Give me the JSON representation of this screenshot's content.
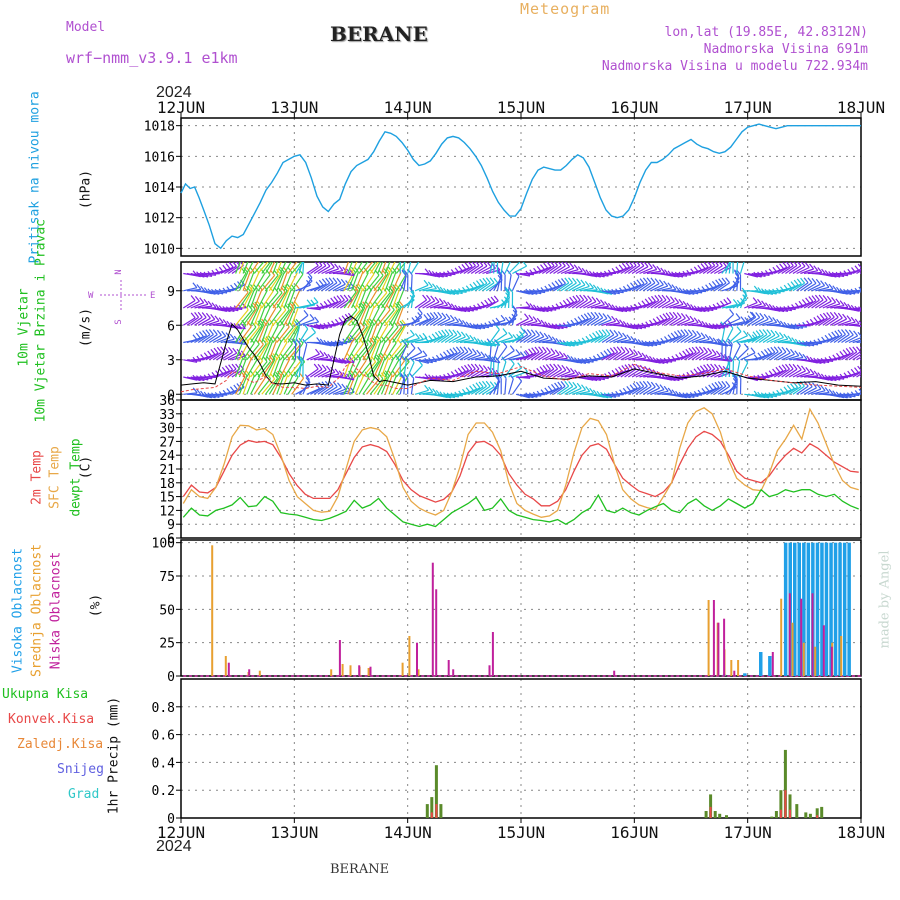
{
  "header": {
    "model_label": "Model",
    "model_name": "wrf−nmm_v3.9.1  e1km",
    "station_title": "BERANE",
    "meteogram_label": "Meteogram",
    "lonlat": "lon,lat (19.85E, 42.8312N)",
    "elevation": "Nadmorska Visina 691m",
    "model_elevation": "Nadmorska Visina u modelu 722.934m",
    "top_year": "2024",
    "bottom_year": "2024",
    "footer_station": "BERANE",
    "watermark": "made by Angel"
  },
  "colors": {
    "pressure": "#1ea0e0",
    "temp2m": "#e84848",
    "sfc_temp": "#e8a848",
    "dewpt": "#20c020",
    "cloud_high": "#20a0e8",
    "cloud_mid": "#e8a030",
    "cloud_low": "#c0209c",
    "rain_total": "#20c020",
    "rain_conv": "#e84848",
    "rain_strat": "#e88838",
    "snow": "#6060e0",
    "graupel": "#30c8c8",
    "wind_violet": "#8020e0",
    "wind_blue": "#4060e8",
    "wind_cyan": "#20c0d8",
    "wind_green": "#40d040",
    "wind_yellow": "#e8d020",
    "wind_orange": "#e89028",
    "label_purple": "#b050d0",
    "label_orange": "#e8b060"
  },
  "chart_data": [
    {
      "type": "line",
      "id": "pressure",
      "ylabel": "Pritisak na nivou mora",
      "unit": "(hPa)",
      "ylim": [
        1009.5,
        1018.5
      ],
      "yticks": [
        1010,
        1012,
        1014,
        1016,
        1018
      ],
      "xlabels": [
        "12JUN",
        "13JUN",
        "14JUN",
        "15JUN",
        "16JUN",
        "17JUN",
        "18JUN"
      ],
      "grid": true,
      "x_days": [
        0,
        0.04,
        0.08,
        0.12,
        0.16,
        0.2,
        0.25,
        0.3,
        0.35,
        0.4,
        0.45,
        0.5,
        0.55,
        0.6,
        0.65,
        0.7,
        0.75,
        0.8,
        0.85,
        0.9,
        0.95,
        1.0,
        1.05,
        1.1,
        1.15,
        1.2,
        1.25,
        1.3,
        1.35,
        1.4,
        1.45,
        1.5,
        1.55,
        1.6,
        1.65,
        1.7,
        1.75,
        1.8,
        1.85,
        1.9,
        1.95,
        2.0,
        2.05,
        2.1,
        2.15,
        2.2,
        2.25,
        2.3,
        2.35,
        2.4,
        2.45,
        2.5,
        2.55,
        2.6,
        2.65,
        2.7,
        2.75,
        2.8,
        2.85,
        2.9,
        2.95,
        3.0,
        3.05,
        3.1,
        3.15,
        3.2,
        3.25,
        3.3,
        3.35,
        3.4,
        3.45,
        3.5,
        3.55,
        3.6,
        3.65,
        3.7,
        3.75,
        3.8,
        3.85,
        3.9,
        3.95,
        4.0,
        4.05,
        4.1,
        4.15,
        4.2,
        4.25,
        4.3,
        4.35,
        4.4,
        4.45,
        4.5,
        4.55,
        4.6,
        4.65,
        4.7,
        4.75,
        4.8,
        4.85,
        4.9,
        4.95,
        5.0,
        5.05,
        5.1,
        5.15,
        5.2,
        5.25,
        5.3,
        5.35,
        5.4,
        5.45,
        5.5,
        5.55,
        5.6,
        5.65,
        5.7,
        5.75,
        5.8,
        5.85,
        5.9,
        5.95,
        6.0
      ],
      "values": [
        1013.6,
        1014.2,
        1013.9,
        1014.0,
        1013.3,
        1012.5,
        1011.5,
        1010.3,
        1010.0,
        1010.5,
        1010.8,
        1010.7,
        1010.9,
        1011.6,
        1012.3,
        1013.0,
        1013.8,
        1014.3,
        1014.9,
        1015.6,
        1015.8,
        1016.0,
        1016.1,
        1015.6,
        1014.6,
        1013.4,
        1012.7,
        1012.4,
        1012.9,
        1013.2,
        1014.2,
        1015.0,
        1015.4,
        1015.6,
        1015.8,
        1016.3,
        1017.0,
        1017.6,
        1017.5,
        1017.3,
        1016.9,
        1016.4,
        1015.8,
        1015.4,
        1015.5,
        1015.7,
        1016.2,
        1016.8,
        1017.2,
        1017.3,
        1017.2,
        1016.9,
        1016.5,
        1016.0,
        1015.4,
        1014.6,
        1013.7,
        1013.0,
        1012.5,
        1012.1,
        1012.1,
        1012.6,
        1013.6,
        1014.5,
        1015.1,
        1015.3,
        1015.2,
        1015.1,
        1015.1,
        1015.4,
        1015.8,
        1016.1,
        1015.9,
        1015.3,
        1014.3,
        1013.3,
        1012.5,
        1012.1,
        1012.0,
        1012.1,
        1012.5,
        1013.3,
        1014.3,
        1015.1,
        1015.6,
        1015.6,
        1015.8,
        1016.1,
        1016.5,
        1016.7,
        1016.9,
        1017.1,
        1016.8,
        1016.6,
        1016.5,
        1016.3,
        1016.2,
        1016.3,
        1016.6,
        1017.1,
        1017.6,
        1017.9,
        1018.0,
        1018.1,
        1018.0,
        1017.9,
        1017.8,
        1017.9,
        1018.0,
        1018.0,
        1018.0,
        1018.0,
        1018.0,
        1018.0,
        1018.0,
        1018.0,
        1018.0,
        1018.0,
        1018.0,
        1018.0,
        1018.0,
        1018.0
      ]
    },
    {
      "type": "line",
      "id": "wind",
      "ylabel": "10m Vjetar Brzina i Pravac",
      "unit": "(m/s)",
      "ylim": [
        -0.5,
        11.5
      ],
      "yticks": [
        0,
        3,
        6,
        9
      ],
      "compass": {
        "n": "N",
        "e": "E",
        "w": "W",
        "s": "S"
      },
      "x_days": [
        0,
        0.1,
        0.2,
        0.3,
        0.4,
        0.45,
        0.5,
        0.55,
        0.6,
        0.65,
        0.7,
        0.75,
        0.8,
        0.85,
        0.9,
        1.0,
        1.1,
        1.2,
        1.3,
        1.4,
        1.45,
        1.5,
        1.55,
        1.6,
        1.65,
        1.7,
        1.75,
        1.8,
        1.9,
        2.0,
        2.2,
        2.4,
        2.6,
        2.8,
        3.0,
        3.2,
        3.4,
        3.6,
        3.8,
        4.0,
        4.2,
        4.4,
        4.6,
        4.8,
        5.0,
        5.2,
        5.4,
        5.6,
        5.8,
        6.0
      ],
      "speed": [
        0.8,
        0.9,
        1.0,
        0.9,
        4.5,
        6.1,
        5.6,
        4.8,
        4.0,
        3.4,
        2.6,
        1.6,
        1.0,
        0.9,
        0.9,
        1.0,
        0.8,
        0.9,
        0.8,
        5.2,
        6.5,
        6.8,
        6.4,
        5.2,
        3.6,
        1.6,
        1.1,
        1.2,
        1.0,
        0.8,
        1.2,
        1.1,
        1.5,
        1.6,
        2.0,
        1.4,
        1.3,
        1.6,
        1.5,
        2.2,
        1.8,
        1.4,
        1.6,
        2.0,
        1.4,
        1.2,
        1.0,
        1.1,
        0.8,
        0.7
      ],
      "gust": [
        0.2,
        0.4,
        0.5,
        0.6,
        1.2,
        2.0,
        1.8,
        1.6,
        1.2,
        1.0,
        1.3,
        1.5,
        1.0,
        0.8,
        0.6,
        0.6,
        0.5,
        0.7,
        0.6,
        1.5,
        2.4,
        2.8,
        2.2,
        1.8,
        1.4,
        1.0,
        0.8,
        0.8,
        0.5,
        0.5,
        1.4,
        1.2,
        2.0,
        1.8,
        2.4,
        1.6,
        1.2,
        1.8,
        1.6,
        2.6,
        1.9,
        1.6,
        1.8,
        2.2,
        1.6,
        1.2,
        1.0,
        0.8,
        0.7,
        0.6
      ]
    },
    {
      "type": "line",
      "id": "temperature",
      "ylabel_lines": [
        "2m Temp",
        "SFC Temp",
        "dewpt Temp"
      ],
      "unit": "(C)",
      "ylim": [
        6,
        36
      ],
      "yticks": [
        6,
        9,
        12,
        15,
        18,
        21,
        24,
        27,
        30,
        33,
        36
      ],
      "series": [
        {
          "name": "2m Temp",
          "values": [
            15.0,
            17.5,
            16.0,
            15.8,
            17.0,
            20.5,
            24.0,
            26.2,
            27.2,
            26.8,
            27.0,
            26.3,
            23.5,
            20.0,
            17.4,
            15.5,
            14.6,
            14.6,
            14.6,
            16.5,
            20.0,
            23.5,
            25.8,
            26.3,
            25.8,
            24.8,
            22.0,
            18.5,
            16.5,
            15.2,
            14.5,
            13.8,
            14.4,
            16.0,
            19.5,
            24.5,
            26.8,
            27.0,
            26.0,
            24.0,
            20.0,
            17.5,
            15.5,
            14.5,
            13.0,
            13.0,
            14.0,
            16.5,
            20.5,
            24.0,
            26.0,
            26.5,
            25.3,
            22.0,
            19.0,
            17.5,
            16.2,
            15.6,
            15.0,
            16.0,
            18.0,
            22.0,
            25.5,
            28.0,
            29.2,
            28.5,
            27.0,
            24.0,
            20.5,
            19.0,
            18.5,
            18.0,
            19.5,
            22.0,
            24.0,
            25.5,
            24.5,
            26.5,
            25.5,
            24.0,
            22.5,
            21.5,
            20.5,
            20.3
          ]
        },
        {
          "name": "SFC Temp",
          "values": [
            13.5,
            16.5,
            15.0,
            14.6,
            17.0,
            22.0,
            28.0,
            30.5,
            30.4,
            29.5,
            29.8,
            28.5,
            24.0,
            18.5,
            15.0,
            13.5,
            12.0,
            11.6,
            11.8,
            15.0,
            21.0,
            27.0,
            29.5,
            30.0,
            29.6,
            28.0,
            23.0,
            17.0,
            14.0,
            12.5,
            11.6,
            11.0,
            12.0,
            16.0,
            21.5,
            28.5,
            31.0,
            31.0,
            29.0,
            25.0,
            18.0,
            13.5,
            12.0,
            11.2,
            10.5,
            10.8,
            12.0,
            17.5,
            24.5,
            30.0,
            32.0,
            31.5,
            28.5,
            22.0,
            16.5,
            14.5,
            13.2,
            12.6,
            12.2,
            15.0,
            18.0,
            25.5,
            31.0,
            33.5,
            34.3,
            33.0,
            29.0,
            23.0,
            19.0,
            17.5,
            16.5,
            16.3,
            20.0,
            25.0,
            27.5,
            30.5,
            27.5,
            34.0,
            31.0,
            26.5,
            22.0,
            18.5,
            17.0,
            16.5
          ]
        },
        {
          "name": "dewpt Temp",
          "values": [
            10.5,
            12.5,
            11.0,
            10.8,
            12.0,
            12.5,
            13.2,
            14.8,
            12.8,
            13.0,
            15.0,
            14.0,
            11.5,
            11.2,
            11.0,
            10.5,
            10.0,
            9.8,
            10.3,
            11.0,
            11.8,
            14.2,
            12.5,
            13.2,
            14.6,
            12.5,
            11.0,
            9.5,
            9.0,
            8.5,
            9.0,
            8.5,
            10.0,
            11.5,
            12.5,
            13.5,
            14.8,
            12.0,
            12.5,
            14.5,
            12.0,
            11.0,
            10.5,
            10.0,
            9.8,
            9.5,
            10.0,
            9.0,
            10.0,
            11.5,
            12.5,
            15.3,
            12.0,
            11.5,
            12.5,
            11.5,
            11.0,
            12.0,
            12.8,
            13.5,
            12.0,
            11.5,
            13.5,
            14.5,
            13.0,
            12.0,
            13.0,
            14.5,
            13.5,
            12.5,
            13.5,
            16.5,
            15.0,
            15.5,
            16.5,
            16.0,
            16.5,
            16.5,
            15.5,
            15.0,
            15.5,
            14.0,
            13.0,
            12.3
          ]
        }
      ]
    },
    {
      "type": "bar",
      "id": "clouds",
      "ylabel_lines": [
        "Visoka Oblacnost",
        "Srednja Oblacnost",
        "Niska Oblacnost"
      ],
      "unit": "(%)",
      "ylim": [
        0,
        102
      ],
      "yticks": [
        0,
        25,
        50,
        75,
        100
      ],
      "high_bars": [
        [
          4.78,
          1
        ],
        [
          4.96,
          2
        ],
        [
          5.1,
          18
        ],
        [
          5.18,
          15
        ],
        [
          5.32,
          100
        ],
        [
          5.36,
          100
        ],
        [
          5.4,
          100
        ],
        [
          5.44,
          100
        ],
        [
          5.48,
          100
        ],
        [
          5.52,
          100
        ],
        [
          5.56,
          100
        ],
        [
          5.6,
          100
        ],
        [
          5.64,
          100
        ],
        [
          5.68,
          100
        ],
        [
          5.72,
          100
        ],
        [
          5.76,
          100
        ],
        [
          5.8,
          100
        ],
        [
          5.84,
          100
        ],
        [
          5.88,
          100
        ]
      ],
      "mid_bars": [
        [
          0.28,
          98
        ],
        [
          0.4,
          15
        ],
        [
          0.6,
          3
        ],
        [
          0.7,
          4
        ],
        [
          1.33,
          5
        ],
        [
          1.43,
          9
        ],
        [
          1.5,
          8
        ],
        [
          1.58,
          7
        ],
        [
          1.66,
          6
        ],
        [
          1.96,
          10
        ],
        [
          2.02,
          30
        ],
        [
          2.1,
          5
        ],
        [
          4.66,
          57
        ],
        [
          4.74,
          40
        ],
        [
          4.8,
          20
        ],
        [
          4.86,
          12
        ],
        [
          4.92,
          12
        ],
        [
          5.3,
          58
        ],
        [
          5.4,
          40
        ],
        [
          5.5,
          25
        ],
        [
          5.6,
          22
        ],
        [
          5.75,
          25
        ],
        [
          5.83,
          30
        ]
      ],
      "low_bars": [
        [
          0.4,
          10
        ],
        [
          0.58,
          5
        ],
        [
          1.38,
          27
        ],
        [
          1.55,
          8
        ],
        [
          1.65,
          7
        ],
        [
          2.06,
          25
        ],
        [
          2.2,
          85
        ],
        [
          2.23,
          65
        ],
        [
          2.34,
          12
        ],
        [
          2.38,
          5
        ],
        [
          2.7,
          8
        ],
        [
          2.73,
          33
        ],
        [
          3.8,
          4
        ],
        [
          4.68,
          57
        ],
        [
          4.72,
          40
        ],
        [
          4.77,
          43
        ],
        [
          4.86,
          4
        ],
        [
          5.2,
          18
        ],
        [
          5.35,
          62
        ],
        [
          5.45,
          58
        ],
        [
          5.55,
          62
        ],
        [
          5.65,
          38
        ],
        [
          5.72,
          22
        ]
      ]
    },
    {
      "type": "bar",
      "id": "precip",
      "legend": [
        "Ukupna  Kisa",
        "Konvek.Kisa",
        "Zaledj.Kisa",
        "Snijeg",
        "Grad"
      ],
      "ylabel": "1hr Precip (mm)",
      "ylim": [
        0,
        1.0
      ],
      "yticks": [
        0,
        0.2,
        0.4,
        0.6,
        0.8
      ],
      "total_bars": [
        [
          2.16,
          0.1
        ],
        [
          2.2,
          0.15
        ],
        [
          2.24,
          0.38
        ],
        [
          2.28,
          0.1
        ],
        [
          4.62,
          0.05
        ],
        [
          4.66,
          0.17
        ],
        [
          4.7,
          0.05
        ],
        [
          4.74,
          0.03
        ],
        [
          4.8,
          0.02
        ],
        [
          5.2,
          0.01
        ],
        [
          5.24,
          0.05
        ],
        [
          5.28,
          0.2
        ],
        [
          5.32,
          0.49
        ],
        [
          5.36,
          0.17
        ],
        [
          5.42,
          0.1
        ],
        [
          5.5,
          0.04
        ],
        [
          5.54,
          0.03
        ],
        [
          5.6,
          0.07
        ],
        [
          5.64,
          0.08
        ]
      ],
      "conv_bars": [
        [
          2.2,
          0.04
        ],
        [
          2.24,
          0.1
        ],
        [
          4.66,
          0.08
        ],
        [
          5.28,
          0.06
        ],
        [
          5.32,
          0.2
        ],
        [
          5.36,
          0.06
        ],
        [
          5.6,
          0.02
        ]
      ]
    }
  ]
}
